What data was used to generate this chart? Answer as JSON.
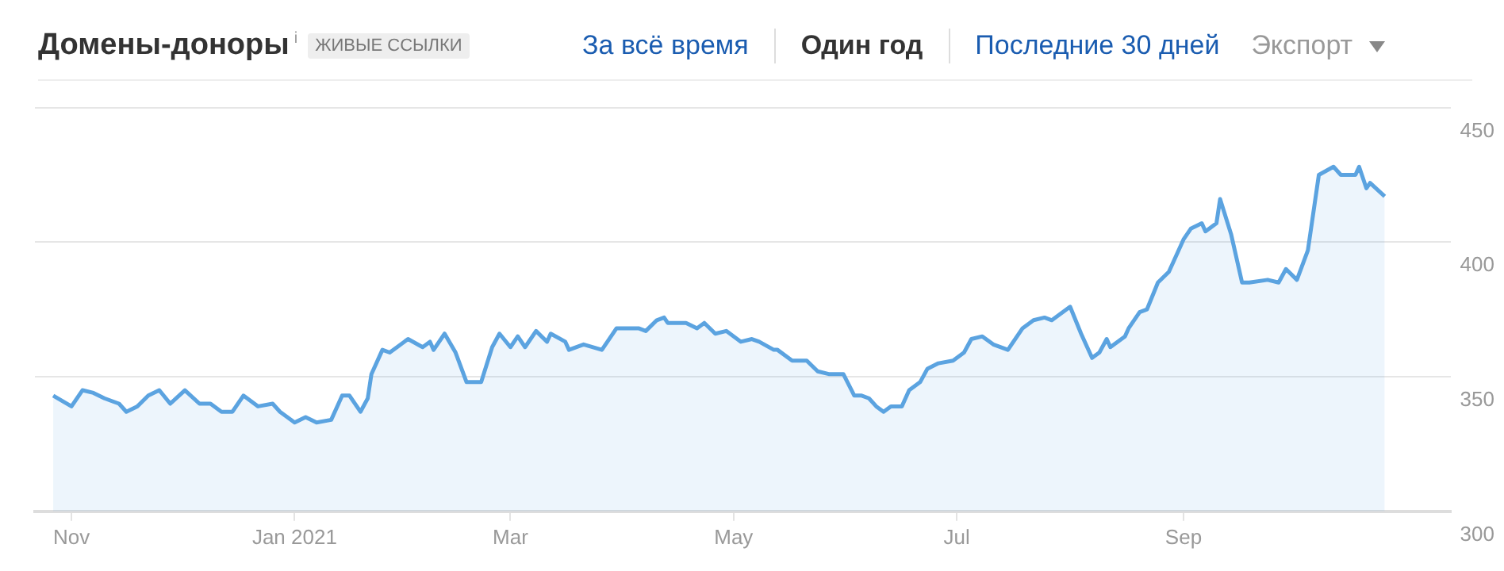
{
  "chart_data": {
    "type": "area",
    "title": "Домены-доноры$^{i}$",
    "subtitle": "ЖИВЫЕ ССЫЛКИ",
    "annotations": [
      "За всё время",
      "Один год",
      "Последние 30 дней",
      "Экспорт"
    ],
    "x": [
      "2020-10-27",
      "2020-11-01",
      "2020-11-04",
      "2020-11-07",
      "2020-11-10",
      "2020-11-14",
      "2020-11-16",
      "2020-11-19",
      "2020-11-22",
      "2020-11-25",
      "2020-11-28",
      "2020-12-02",
      "2020-12-06",
      "2020-12-09",
      "2020-12-12",
      "2020-12-15",
      "2020-12-18",
      "2020-12-22",
      "2020-12-26",
      "2020-12-28",
      "2021-01-01",
      "2021-01-04",
      "2021-01-07",
      "2021-01-11",
      "2021-01-14",
      "2021-01-16",
      "2021-01-19",
      "2021-01-21",
      "2021-01-22",
      "2021-01-25",
      "2021-01-27",
      "2021-01-29",
      "2021-02-01",
      "2021-02-05",
      "2021-02-07",
      "2021-02-08",
      "2021-02-11",
      "2021-02-14",
      "2021-02-17",
      "2021-02-21",
      "2021-02-24",
      "2021-02-26",
      "2021-03-01",
      "2021-03-03",
      "2021-03-05",
      "2021-03-08",
      "2021-03-11",
      "2021-03-12",
      "2021-03-16",
      "2021-03-17",
      "2021-03-21",
      "2021-03-26",
      "2021-03-30",
      "2021-04-05",
      "2021-04-07",
      "2021-04-10",
      "2021-04-12",
      "2021-04-13",
      "2021-04-18",
      "2021-04-21",
      "2021-04-23",
      "2021-04-26",
      "2021-04-29",
      "2021-05-03",
      "2021-05-06",
      "2021-05-08",
      "2021-05-12",
      "2021-05-13",
      "2021-05-17",
      "2021-05-21",
      "2021-05-24",
      "2021-05-27",
      "2021-05-31",
      "2021-06-03",
      "2021-06-05",
      "2021-06-07",
      "2021-06-09",
      "2021-06-11",
      "2021-06-13",
      "2021-06-16",
      "2021-06-18",
      "2021-06-21",
      "2021-06-23",
      "2021-06-26",
      "2021-06-30",
      "2021-07-03",
      "2021-07-05",
      "2021-07-08",
      "2021-07-11",
      "2021-07-15",
      "2021-07-19",
      "2021-07-22",
      "2021-07-25",
      "2021-07-27",
      "2021-08-01",
      "2021-08-04",
      "2021-08-07",
      "2021-08-09",
      "2021-08-11",
      "2021-08-12",
      "2021-08-16",
      "2021-08-17",
      "2021-08-20",
      "2021-08-22",
      "2021-08-25",
      "2021-08-28",
      "2021-09-01",
      "2021-09-03",
      "2021-09-06",
      "2021-09-07",
      "2021-09-10",
      "2021-09-11",
      "2021-09-14",
      "2021-09-17",
      "2021-09-19",
      "2021-09-24",
      "2021-09-27",
      "2021-09-29",
      "2021-10-02",
      "2021-10-05",
      "2021-10-08",
      "2021-10-12",
      "2021-10-14",
      "2021-10-18",
      "2021-10-19",
      "2021-10-21",
      "2021-10-22",
      "2021-10-26"
    ],
    "series": [
      {
        "color": "#5ba3e0",
        "values": [
          343,
          339,
          345,
          344,
          342,
          340,
          337,
          339,
          343,
          345,
          340,
          345,
          340,
          340,
          337,
          337,
          343,
          339,
          340,
          337,
          333,
          335,
          333,
          334,
          343,
          343,
          337,
          342,
          351,
          360,
          359,
          361,
          364,
          361,
          363,
          360,
          366,
          359,
          348,
          348,
          361,
          366,
          361,
          365,
          361,
          367,
          363,
          366,
          363,
          360,
          362,
          360,
          368,
          368,
          367,
          371,
          372,
          370,
          370,
          368,
          370,
          366,
          367,
          363,
          364,
          363,
          360,
          360,
          356,
          356,
          352,
          351,
          351,
          343,
          343,
          342,
          339,
          337,
          339,
          339,
          345,
          348,
          353,
          355,
          356,
          359,
          364,
          365,
          362,
          360,
          368,
          371,
          372,
          371,
          376,
          366,
          357,
          359,
          364,
          361,
          365,
          368,
          374,
          375,
          385,
          389,
          401,
          405,
          407,
          404,
          407,
          416,
          403,
          385,
          385,
          386,
          385,
          390,
          386,
          397,
          425,
          428,
          425,
          425,
          428,
          420,
          422,
          417
        ]
      }
    ],
    "xlim": [
      "2020-10-22",
      "2021-11-13"
    ],
    "xticks": [
      {
        "value": "2020-11-01",
        "label": "Nov"
      },
      {
        "value": "2021-01-01",
        "label": "Jan 2021"
      },
      {
        "value": "2021-03-01",
        "label": "Mar"
      },
      {
        "value": "2021-05-01",
        "label": "May"
      },
      {
        "value": "2021-07-01",
        "label": "Jul"
      },
      {
        "value": "2021-09-01",
        "label": "Sep"
      }
    ],
    "ylim": [
      300,
      450
    ],
    "yticks": [
      300,
      350,
      400,
      450
    ],
    "grid": "y",
    "legend": false
  }
}
